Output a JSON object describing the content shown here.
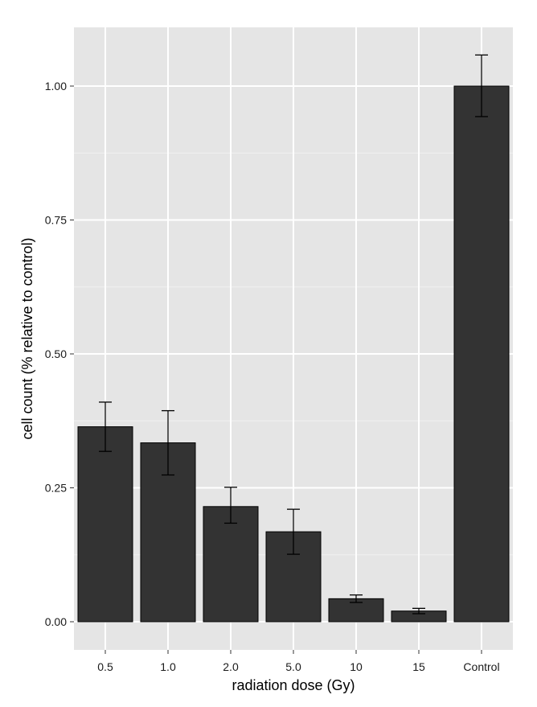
{
  "chart_data": {
    "type": "bar",
    "title": "",
    "xlabel": "radiation dose  (Gy)",
    "ylabel": "cell count  (% relative to control)",
    "categories": [
      "0.5",
      "1.0",
      "2.0",
      "5.0",
      "10",
      "15",
      "Control"
    ],
    "values": [
      0.364,
      0.334,
      0.215,
      0.168,
      0.043,
      0.02,
      1.0
    ],
    "error_low": [
      0.318,
      0.274,
      0.184,
      0.126,
      0.036,
      0.015,
      0.943
    ],
    "error_high": [
      0.41,
      0.394,
      0.251,
      0.21,
      0.05,
      0.025,
      1.058
    ],
    "ylim": [
      -0.055,
      1.11
    ],
    "yticks": [
      0.0,
      0.25,
      0.5,
      0.75,
      1.0
    ],
    "ytick_labels": [
      "0.00",
      "0.25",
      "0.50",
      "0.75",
      "1.00"
    ],
    "grid": true,
    "legend": "none",
    "colors": {
      "panel_background": "#e5e5e5",
      "grid_major": "#ffffff",
      "grid_minor": "#f2f2f2",
      "bar_fill": "#333333",
      "bar_stroke": "#000000",
      "error_bar": "#000000"
    }
  }
}
